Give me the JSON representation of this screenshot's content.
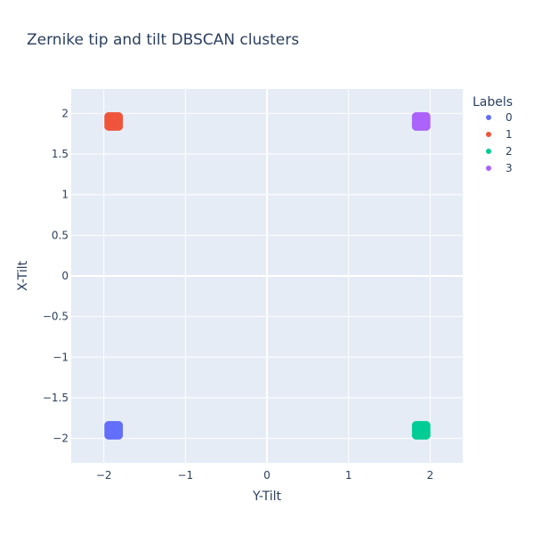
{
  "chart_data": {
    "type": "scatter",
    "title": "Zernike tip and tilt DBSCAN clusters",
    "xlabel": "Y-Tilt",
    "ylabel": "X-Tilt",
    "xlim": [
      -2.4,
      2.4
    ],
    "ylim": [
      -2.3,
      2.3
    ],
    "xticks": [
      -2,
      -1,
      0,
      1,
      2
    ],
    "xtick_labels": [
      "−2",
      "−1",
      "0",
      "1",
      "2"
    ],
    "yticks": [
      2,
      1.5,
      1,
      0.5,
      0,
      -0.5,
      -1,
      -1.5,
      -2
    ],
    "ytick_labels": [
      "2",
      "1.5",
      "1",
      "0.5",
      "0",
      "−0.5",
      "−1",
      "−1.5",
      "−2"
    ],
    "grid": true,
    "legend_title": "Labels",
    "legend_position": "top-right",
    "series": [
      {
        "name": "0",
        "color": "#636efa",
        "x": [
          -1.94,
          -1.91,
          -1.88,
          -1.85,
          -1.82,
          -1.94,
          -1.91,
          -1.88,
          -1.85,
          -1.82,
          -1.94,
          -1.91,
          -1.88,
          -1.85,
          -1.82,
          -1.94,
          -1.91,
          -1.88,
          -1.85,
          -1.82,
          -1.94,
          -1.91,
          -1.88,
          -1.85,
          -1.82
        ],
        "y": [
          -1.84,
          -1.84,
          -1.84,
          -1.84,
          -1.84,
          -1.87,
          -1.87,
          -1.87,
          -1.87,
          -1.87,
          -1.9,
          -1.9,
          -1.9,
          -1.9,
          -1.9,
          -1.93,
          -1.93,
          -1.93,
          -1.93,
          -1.93,
          -1.96,
          -1.96,
          -1.96,
          -1.96,
          -1.96
        ]
      },
      {
        "name": "1",
        "color": "#ef553b",
        "x": [
          -1.94,
          -1.91,
          -1.88,
          -1.85,
          -1.82,
          -1.94,
          -1.91,
          -1.88,
          -1.85,
          -1.82,
          -1.94,
          -1.91,
          -1.88,
          -1.85,
          -1.82,
          -1.94,
          -1.91,
          -1.88,
          -1.85,
          -1.82,
          -1.94,
          -1.91,
          -1.88,
          -1.85,
          -1.82
        ],
        "y": [
          1.96,
          1.96,
          1.96,
          1.96,
          1.96,
          1.93,
          1.93,
          1.93,
          1.93,
          1.93,
          1.9,
          1.9,
          1.9,
          1.9,
          1.9,
          1.87,
          1.87,
          1.87,
          1.87,
          1.87,
          1.84,
          1.84,
          1.84,
          1.84,
          1.84
        ]
      },
      {
        "name": "2",
        "color": "#00cc96",
        "x": [
          1.83,
          1.86,
          1.89,
          1.92,
          1.95,
          1.83,
          1.86,
          1.89,
          1.92,
          1.95,
          1.83,
          1.86,
          1.89,
          1.92,
          1.95,
          1.83,
          1.86,
          1.89,
          1.92,
          1.95,
          1.83,
          1.86,
          1.89,
          1.92,
          1.95
        ],
        "y": [
          -1.84,
          -1.84,
          -1.84,
          -1.84,
          -1.84,
          -1.87,
          -1.87,
          -1.87,
          -1.87,
          -1.87,
          -1.9,
          -1.9,
          -1.9,
          -1.9,
          -1.9,
          -1.93,
          -1.93,
          -1.93,
          -1.93,
          -1.93,
          -1.96,
          -1.96,
          -1.96,
          -1.96,
          -1.96
        ]
      },
      {
        "name": "3",
        "color": "#ab63fa",
        "x": [
          1.83,
          1.86,
          1.89,
          1.92,
          1.95,
          1.83,
          1.86,
          1.89,
          1.92,
          1.95,
          1.83,
          1.86,
          1.89,
          1.92,
          1.95,
          1.83,
          1.86,
          1.89,
          1.92,
          1.95,
          1.83,
          1.86,
          1.89,
          1.92,
          1.95
        ],
        "y": [
          1.96,
          1.96,
          1.96,
          1.96,
          1.96,
          1.93,
          1.93,
          1.93,
          1.93,
          1.93,
          1.9,
          1.9,
          1.9,
          1.9,
          1.9,
          1.87,
          1.87,
          1.87,
          1.87,
          1.87,
          1.84,
          1.84,
          1.84,
          1.84,
          1.84
        ]
      }
    ]
  }
}
